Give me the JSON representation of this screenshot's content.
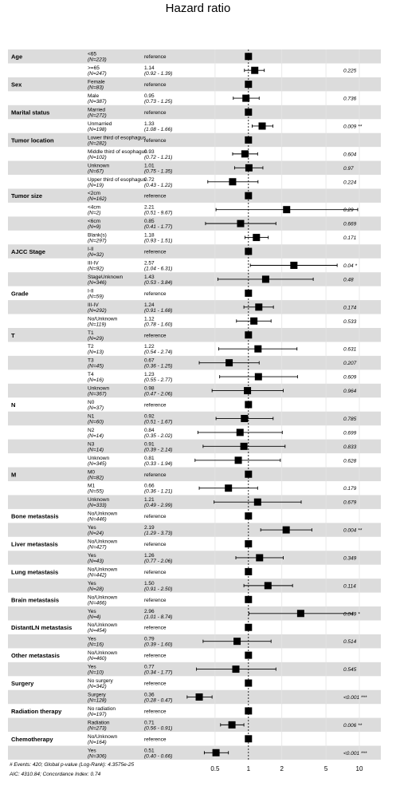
{
  "title": "Hazard ratio",
  "footer_line1": "# Events: 420; Global p-value (Log-Rank): 4.3575e-25",
  "footer_line2": "AIC: 4310.84; Concordance Index: 0.74",
  "chart_data": {
    "type": "forest",
    "title": "Hazard ratio",
    "x_scale": "log",
    "xlim": [
      0.25,
      12
    ],
    "x_ticks": [
      0.5,
      1,
      2,
      5,
      10
    ],
    "x_tick_labels": [
      "0.5",
      "1",
      "2",
      "5",
      "10"
    ],
    "reference_line": 1,
    "rows": [
      {
        "variable": "Age",
        "level": "<65",
        "n": "(N=223)",
        "ref": true,
        "hr": 1
      },
      {
        "variable": "",
        "level": ">=65",
        "n": "(N=247)",
        "hr": 1.14,
        "hr_text": "1.14",
        "ci": [
          0.92,
          1.39
        ],
        "ci_text": "(0.92 - 1.39)",
        "p": "0.225"
      },
      {
        "variable": "Sex",
        "level": "Female",
        "n": "(N=83)",
        "ref": true,
        "hr": 1
      },
      {
        "variable": "",
        "level": "Male",
        "n": "(N=387)",
        "hr": 0.95,
        "hr_text": "0.95",
        "ci": [
          0.73,
          1.25
        ],
        "ci_text": "(0.73 - 1.25)",
        "p": "0.736"
      },
      {
        "variable": "Marital status",
        "level": "Married",
        "n": "(N=272)",
        "ref": true,
        "hr": 1
      },
      {
        "variable": "",
        "level": "Unmarried",
        "n": "(N=198)",
        "hr": 1.33,
        "hr_text": "1.33",
        "ci": [
          1.08,
          1.66
        ],
        "ci_text": "(1.08 - 1.66)",
        "p": "0.009 **"
      },
      {
        "variable": "Tumor location",
        "level": "Lower third of esophagus",
        "n": "(N=282)",
        "ref": true,
        "hr": 1
      },
      {
        "variable": "",
        "level": "Middle third of esophagus",
        "n": "(N=102)",
        "hr": 0.93,
        "hr_text": "0.93",
        "ci": [
          0.72,
          1.21
        ],
        "ci_text": "(0.72 - 1.21)",
        "p": "0.604"
      },
      {
        "variable": "",
        "level": "Unknown",
        "n": "(N=67)",
        "hr": 1.01,
        "hr_text": "1.01",
        "ci": [
          0.75,
          1.35
        ],
        "ci_text": "(0.75 - 1.35)",
        "p": "0.97"
      },
      {
        "variable": "",
        "level": "Upper third of esophagus",
        "n": "(N=19)",
        "hr": 0.72,
        "hr_text": "0.72",
        "ci": [
          0.43,
          1.22
        ],
        "ci_text": "(0.43 - 1.22)",
        "p": "0.224"
      },
      {
        "variable": "Tumor size",
        "level": "<2cm",
        "n": "(N=162)",
        "ref": true,
        "hr": 1
      },
      {
        "variable": "",
        "level": "<4cm",
        "n": "(N=2)",
        "hr": 2.21,
        "hr_text": "2.21",
        "ci": [
          0.51,
          9.67
        ],
        "ci_text": "(0.51 - 9.67)",
        "p": "0.29"
      },
      {
        "variable": "",
        "level": "<6cm",
        "n": "(N=9)",
        "hr": 0.85,
        "hr_text": "0.85",
        "ci": [
          0.41,
          1.77
        ],
        "ci_text": "(0.41 - 1.77)",
        "p": "0.669"
      },
      {
        "variable": "",
        "level": "Blank(s)",
        "n": "(N=297)",
        "hr": 1.18,
        "hr_text": "1.18",
        "ci": [
          0.93,
          1.51
        ],
        "ci_text": "(0.93 - 1.51)",
        "p": "0.171"
      },
      {
        "variable": "AJCC Stage",
        "level": "I-II",
        "n": "(N=32)",
        "ref": true,
        "hr": 1
      },
      {
        "variable": "",
        "level": "III-IV",
        "n": "(N=92)",
        "hr": 2.57,
        "hr_text": "2.57",
        "ci": [
          1.04,
          6.31
        ],
        "ci_text": "(1.04 - 6.31)",
        "p": "0.04 *"
      },
      {
        "variable": "",
        "level": "StageUnknown",
        "n": "(N=346)",
        "hr": 1.43,
        "hr_text": "1.43",
        "ci": [
          0.53,
          3.84
        ],
        "ci_text": "(0.53 - 3.84)",
        "p": "0.48"
      },
      {
        "variable": "Grade",
        "level": "I-II",
        "n": "(N=59)",
        "ref": true,
        "hr": 1
      },
      {
        "variable": "",
        "level": "III-IV",
        "n": "(N=292)",
        "hr": 1.24,
        "hr_text": "1.24",
        "ci": [
          0.91,
          1.68
        ],
        "ci_text": "(0.91 - 1.68)",
        "p": "0.174"
      },
      {
        "variable": "",
        "level": "No/Unknown",
        "n": "(N=119)",
        "hr": 1.12,
        "hr_text": "1.12",
        "ci": [
          0.78,
          1.6
        ],
        "ci_text": "(0.78 - 1.60)",
        "p": "0.533"
      },
      {
        "variable": "T",
        "level": "T1",
        "n": "(N=29)",
        "ref": true,
        "hr": 1
      },
      {
        "variable": "",
        "level": "T2",
        "n": "(N=13)",
        "hr": 1.22,
        "hr_text": "1.22",
        "ci": [
          0.54,
          2.74
        ],
        "ci_text": "(0.54 - 2.74)",
        "p": "0.631"
      },
      {
        "variable": "",
        "level": "T3",
        "n": "(N=45)",
        "hr": 0.67,
        "hr_text": "0.67",
        "ci": [
          0.36,
          1.25
        ],
        "ci_text": "(0.36 - 1.25)",
        "p": "0.207"
      },
      {
        "variable": "",
        "level": "T4",
        "n": "(N=16)",
        "hr": 1.23,
        "hr_text": "1.23",
        "ci": [
          0.55,
          2.77
        ],
        "ci_text": "(0.55 - 2.77)",
        "p": "0.609"
      },
      {
        "variable": "",
        "level": "Unknown",
        "n": "(N=367)",
        "hr": 0.98,
        "hr_text": "0.98",
        "ci": [
          0.47,
          2.06
        ],
        "ci_text": "(0.47 - 2.06)",
        "p": "0.964"
      },
      {
        "variable": "N",
        "level": "N0",
        "n": "(N=37)",
        "ref": true,
        "hr": 1
      },
      {
        "variable": "",
        "level": "N1",
        "n": "(N=60)",
        "hr": 0.92,
        "hr_text": "0.92",
        "ci": [
          0.51,
          1.67
        ],
        "ci_text": "(0.51 - 1.67)",
        "p": "0.785"
      },
      {
        "variable": "",
        "level": "N2",
        "n": "(N=14)",
        "hr": 0.84,
        "hr_text": "0.84",
        "ci": [
          0.35,
          2.02
        ],
        "ci_text": "(0.35 - 2.02)",
        "p": "0.699"
      },
      {
        "variable": "",
        "level": "N3",
        "n": "(N=14)",
        "hr": 0.91,
        "hr_text": "0.91",
        "ci": [
          0.39,
          2.14
        ],
        "ci_text": "(0.39 - 2.14)",
        "p": "0.833"
      },
      {
        "variable": "",
        "level": "Unknown",
        "n": "(N=345)",
        "hr": 0.81,
        "hr_text": "0.81",
        "ci": [
          0.33,
          1.94
        ],
        "ci_text": "(0.33 - 1.94)",
        "p": "0.628"
      },
      {
        "variable": "M",
        "level": "M0",
        "n": "(N=82)",
        "ref": true,
        "hr": 1
      },
      {
        "variable": "",
        "level": "M1",
        "n": "(N=55)",
        "hr": 0.66,
        "hr_text": "0.66",
        "ci": [
          0.36,
          1.21
        ],
        "ci_text": "(0.36 - 1.21)",
        "p": "0.179"
      },
      {
        "variable": "",
        "level": "Unknown",
        "n": "(N=333)",
        "hr": 1.21,
        "hr_text": "1.21",
        "ci": [
          0.49,
          2.99
        ],
        "ci_text": "(0.49 - 2.99)",
        "p": "0.679"
      },
      {
        "variable": "Bone metastasis",
        "level": "No/Unknown",
        "n": "(N=446)",
        "ref": true,
        "hr": 1
      },
      {
        "variable": "",
        "level": "Yes",
        "n": "(N=24)",
        "hr": 2.19,
        "hr_text": "2.19",
        "ci": [
          1.29,
          3.73
        ],
        "ci_text": "(1.29 - 3.73)",
        "p": "0.004 **"
      },
      {
        "variable": "Liver metastasis",
        "level": "No/Unknown",
        "n": "(N=427)",
        "ref": true,
        "hr": 1
      },
      {
        "variable": "",
        "level": "Yes",
        "n": "(N=43)",
        "hr": 1.26,
        "hr_text": "1.26",
        "ci": [
          0.77,
          2.06
        ],
        "ci_text": "(0.77 - 2.06)",
        "p": "0.349"
      },
      {
        "variable": "Lung metastasis",
        "level": "No/Unknown",
        "n": "(N=442)",
        "ref": true,
        "hr": 1
      },
      {
        "variable": "",
        "level": "Yes",
        "n": "(N=28)",
        "hr": 1.5,
        "hr_text": "1.50",
        "ci": [
          0.91,
          2.5
        ],
        "ci_text": "(0.91 - 2.50)",
        "p": "0.114"
      },
      {
        "variable": "Brain metastasis",
        "level": "No/Unknown",
        "n": "(N=466)",
        "ref": true,
        "hr": 1
      },
      {
        "variable": "",
        "level": "Yes",
        "n": "(N=4)",
        "hr": 2.96,
        "hr_text": "2.96",
        "ci": [
          1.01,
          8.74
        ],
        "ci_text": "(1.01 - 8.74)",
        "p": "0.049 *"
      },
      {
        "variable": "DistantLN metastasis",
        "level": "No/Unknown",
        "n": "(N=454)",
        "ref": true,
        "hr": 1
      },
      {
        "variable": "",
        "level": "Yes",
        "n": "(N=16)",
        "hr": 0.79,
        "hr_text": "0.79",
        "ci": [
          0.39,
          1.6
        ],
        "ci_text": "(0.39 - 1.60)",
        "p": "0.514"
      },
      {
        "variable": "Other metastasis",
        "level": "No/Unknown",
        "n": "(N=460)",
        "ref": true,
        "hr": 1
      },
      {
        "variable": "",
        "level": "Yes",
        "n": "(N=10)",
        "hr": 0.77,
        "hr_text": "0.77",
        "ci": [
          0.34,
          1.77
        ],
        "ci_text": "(0.34 - 1.77)",
        "p": "0.545"
      },
      {
        "variable": "Surgery",
        "level": "No surgery",
        "n": "(N=342)",
        "ref": true,
        "hr": 1
      },
      {
        "variable": "",
        "level": "Surgery",
        "n": "(N=128)",
        "hr": 0.36,
        "hr_text": "0.36",
        "ci": [
          0.28,
          0.47
        ],
        "ci_text": "(0.28 - 0.47)",
        "p": "<0.001 ***"
      },
      {
        "variable": "Radiation therapy",
        "level": "No radiation",
        "n": "(N=197)",
        "ref": true,
        "hr": 1
      },
      {
        "variable": "",
        "level": "Radiation",
        "n": "(N=273)",
        "hr": 0.71,
        "hr_text": "0.71",
        "ci": [
          0.56,
          0.91
        ],
        "ci_text": "(0.56 - 0.91)",
        "p": "0.006 **"
      },
      {
        "variable": "Chemotherapy",
        "level": "No/Unknown",
        "n": "(N=164)",
        "ref": true,
        "hr": 1
      },
      {
        "variable": "",
        "level": "Yes",
        "n": "(N=306)",
        "hr": 0.51,
        "hr_text": "0.51",
        "ci": [
          0.4,
          0.66
        ],
        "ci_text": "(0.40 - 0.66)",
        "p": "<0.001 ***"
      }
    ],
    "reference_text": "reference"
  }
}
